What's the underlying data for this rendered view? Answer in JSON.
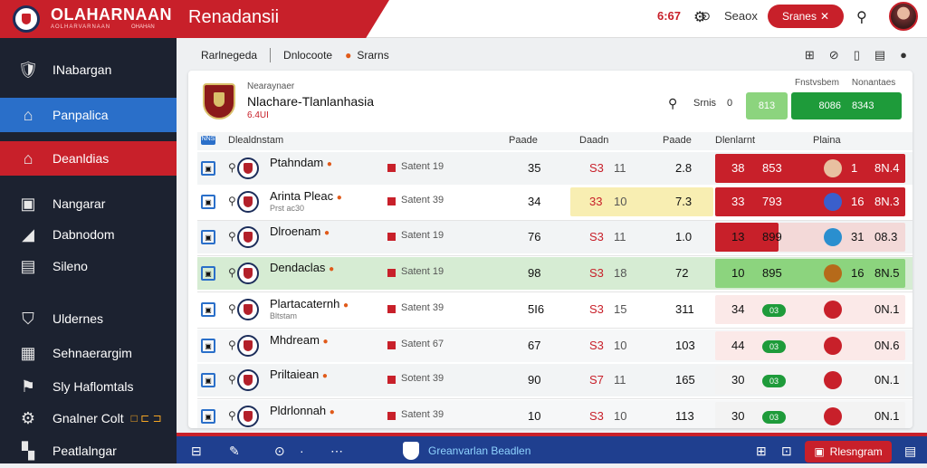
{
  "app": {
    "brand_name": "OLAHARNAAN",
    "brand_sub_left": "AOLHARVARNAAN",
    "brand_sub_right": "OHAHAN",
    "title": "Renadansii",
    "count": "6:67",
    "search_label": "Seaox",
    "action_button": "Sranes",
    "accent": "#c8202a",
    "sidebar_bg": "#1c2230",
    "blue": "#2a6fc9"
  },
  "sidebar": {
    "items": [
      {
        "label": "INabargan",
        "icon": "crest-icon"
      },
      {
        "label": "Panpalica",
        "icon": "home-icon"
      },
      {
        "label": "Deanldias",
        "icon": "house-icon"
      },
      {
        "label": "Nangarar",
        "icon": "building-icon"
      },
      {
        "label": "Dabnodom",
        "icon": "megaphone-icon"
      },
      {
        "label": "Sileno",
        "icon": "box-icon"
      },
      {
        "label": "Uldernes",
        "icon": "shield-icon"
      },
      {
        "label": "Sehnaerargim",
        "icon": "lock-icon"
      },
      {
        "label": "Sly Haflomtals",
        "icon": "flag-icon"
      },
      {
        "label": "Gnalner Colt",
        "icon": "settings-icon",
        "extra": "□ ⊏ ⊐"
      },
      {
        "label": "Peatlalngar",
        "icon": "grid-icon"
      }
    ]
  },
  "subheader": {
    "items": [
      "Rarlnegeda",
      "Dnlocoote",
      "Srarns"
    ]
  },
  "team": {
    "kicker": "Nearaynaer",
    "name": "Nlachare-Tlanlanhasia",
    "code": "6.4UI",
    "search_label": "Srnis",
    "count_mini": "0",
    "left_pill": "813",
    "right_pill": [
      "8086",
      "8343"
    ],
    "right_labels": [
      "Fnstvsbem",
      "Nonantaes"
    ]
  },
  "table": {
    "headers": {
      "badge": "NNS",
      "name": "Dlealdnstam",
      "c1": "Paade",
      "c2": "Daadn",
      "c4": "Paade",
      "c5": "Dlenlarnt",
      "c6": "Plaina"
    },
    "rows": [
      {
        "name": "Ptahndam",
        "sub": "",
        "status": "Satent 19",
        "c1": "35",
        "c2": "S3",
        "c3": "11",
        "c4": "2.8",
        "r1": "38",
        "r2": "853",
        "rn": "1",
        "rv": "8N.4"
      },
      {
        "name": "Arinta Pleac",
        "sub": "Prst ac30",
        "status": "Satent 39",
        "c1": "34",
        "c2": "33",
        "c3": "10",
        "c4": "7.3",
        "r1": "33",
        "r2": "793",
        "rn": "16",
        "rv": "8N.3"
      },
      {
        "name": "Dlroenam",
        "sub": "",
        "status": "Satent 19",
        "c1": "76",
        "c2": "S3",
        "c3": "11",
        "c4": "1.0",
        "r1": "13",
        "r2": "899",
        "rn": "31",
        "rv": "08.3"
      },
      {
        "name": "Dendaclas",
        "sub": "",
        "status": "Satent 19",
        "c1": "98",
        "c2": "S3",
        "c3": "18",
        "c4": "72",
        "r1": "10",
        "r2": "895",
        "rn": "16",
        "rv": "8N.5"
      },
      {
        "name": "Plartacaternh",
        "sub": "Bltstam",
        "status": "Satent 39",
        "c1": "5I6",
        "c2": "S3",
        "c3": "15",
        "c4": "311",
        "r1": "34",
        "r2": "03",
        "rn": "",
        "rv": "0N.1"
      },
      {
        "name": "Mhdream",
        "sub": "",
        "status": "Satent 67",
        "c1": "67",
        "c2": "S3",
        "c3": "10",
        "c4": "103",
        "r1": "44",
        "r2": "03",
        "rn": "",
        "rv": "0N.6"
      },
      {
        "name": "Priltaiean",
        "sub": "",
        "status": "Sotent 39",
        "c1": "90",
        "c2": "S7",
        "c3": "11",
        "c4": "165",
        "r1": "30",
        "r2": "03",
        "rn": "",
        "rv": "0N.1"
      },
      {
        "name": "Pldrlonnah",
        "sub": "",
        "status": "Satent 39",
        "c1": "10",
        "c2": "S3",
        "c3": "10",
        "c4": "113",
        "r1": "30",
        "r2": "03",
        "rn": "",
        "rv": "0N.1"
      }
    ]
  },
  "bottombar": {
    "label": "Greanvarlan Beadlen",
    "button": "Rlesngram"
  }
}
